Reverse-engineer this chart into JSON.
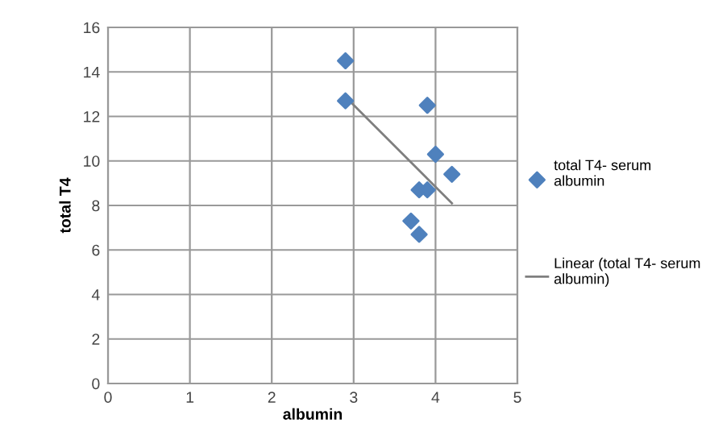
{
  "chart_data": {
    "type": "scatter",
    "xlabel": "albumin",
    "ylabel": "total T4",
    "xlim": [
      0,
      5
    ],
    "xticks": [
      0,
      1,
      2,
      3,
      4,
      5
    ],
    "ylim": [
      0,
      16
    ],
    "yticks": [
      0,
      2,
      4,
      6,
      8,
      10,
      12,
      14,
      16
    ],
    "grid": true,
    "legend": "right",
    "marker": "diamond",
    "series": [
      {
        "name": "total T4- serum albumin",
        "type": "scatter",
        "color": "#4f81bd",
        "x": [
          2.9,
          2.9,
          3.9,
          4.0,
          4.2,
          3.8,
          3.9,
          3.7,
          3.8
        ],
        "values": [
          14.5,
          12.7,
          12.5,
          10.3,
          9.4,
          8.7,
          8.7,
          7.3,
          6.7
        ]
      },
      {
        "name": "Linear (total T4- serum albumin)",
        "type": "line",
        "color": "#7f7f7f",
        "marker": "none",
        "x": [
          2.95,
          4.2
        ],
        "values": [
          12.7,
          8.1
        ]
      }
    ]
  }
}
